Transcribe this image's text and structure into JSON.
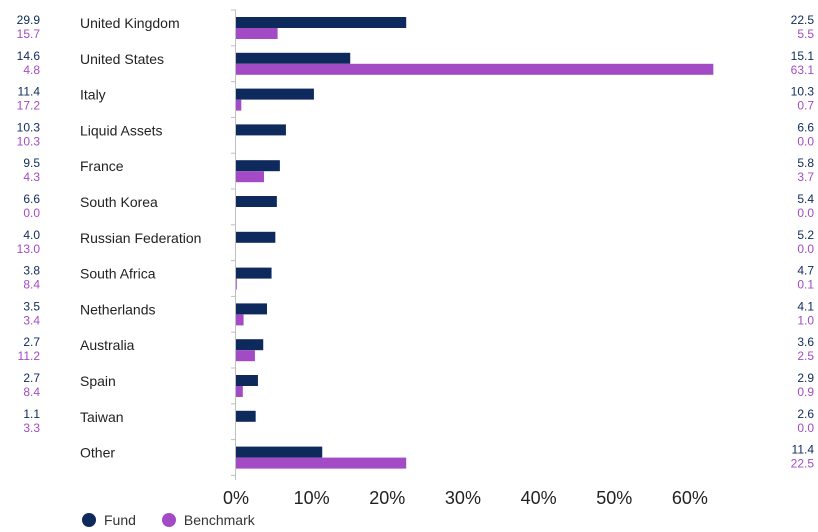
{
  "chart_data": {
    "type": "bar",
    "orientation": "horizontal",
    "categories": [
      "United Kingdom",
      "United States",
      "Italy",
      "Liquid Assets",
      "France",
      "South Korea",
      "Russian Federation",
      "South Africa",
      "Netherlands",
      "Australia",
      "Spain",
      "Taiwan",
      "Other"
    ],
    "series": [
      {
        "name": "Fund",
        "color": "#0e2a5c",
        "values": [
          22.5,
          15.1,
          10.3,
          6.6,
          5.8,
          5.4,
          5.2,
          4.7,
          4.1,
          3.6,
          2.9,
          2.6,
          11.4
        ],
        "labels": [
          "22.5",
          "15.1",
          "10.3",
          "6.6",
          "5.8",
          "5.4",
          "5.2",
          "4.7",
          "4.1",
          "3.6",
          "2.9",
          "2.6",
          "11.4"
        ]
      },
      {
        "name": "Benchmark",
        "color": "#a34bc4",
        "values": [
          5.5,
          63.1,
          0.7,
          0.0,
          3.7,
          0.0,
          0.0,
          0.1,
          1.0,
          2.5,
          0.9,
          0.0,
          22.5
        ],
        "labels": [
          "5.5",
          "63.1",
          "0.7",
          "0.0",
          "3.7",
          "0.0",
          "0.0",
          "0.1",
          "1.0",
          "2.5",
          "0.9",
          "0.0",
          "22.5"
        ]
      }
    ],
    "left_values": {
      "fund": [
        "29.9",
        "14.6",
        "11.4",
        "10.3",
        "9.5",
        "6.6",
        "4.0",
        "3.8",
        "3.5",
        "2.7",
        "2.7",
        "1.1"
      ],
      "benchmark": [
        "15.7",
        "4.8",
        "17.2",
        "10.3",
        "4.3",
        "0.0",
        "13.0",
        "8.4",
        "3.4",
        "11.2",
        "8.4",
        "3.3"
      ]
    },
    "xlim": [
      0,
      70
    ],
    "xticks": [
      0,
      10,
      20,
      30,
      40,
      50,
      60
    ],
    "xtick_labels": [
      "0%",
      "10%",
      "20%",
      "30%",
      "40%",
      "50%",
      "60%"
    ],
    "grid": false,
    "legend_position": "bottom-left"
  },
  "legend": {
    "fund": "Fund",
    "benchmark": "Benchmark"
  }
}
